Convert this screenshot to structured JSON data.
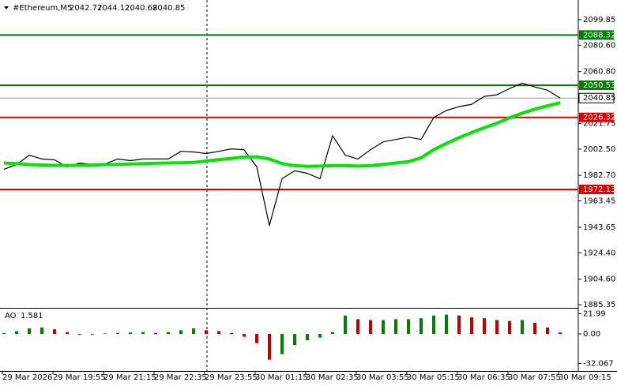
{
  "chart_data": [
    {
      "type": "line",
      "title": "#Ethereum,M5",
      "ohlc": [
        2042.77,
        2044.12,
        2040.68,
        2040.85
      ],
      "series": [
        {
          "name": "Price",
          "color": "#000000",
          "values": [
            1987.3,
            1990.8,
            1997.9,
            1995,
            1994.4,
            1989.1,
            1992,
            1990.8,
            1991.4,
            1995,
            1993.8,
            1995,
            1995,
            1995,
            2000.8,
            2000.3,
            1999.1,
            2000.8,
            2002.6,
            2002,
            1989.1,
            1945,
            1980.2,
            1986.1,
            1984.3,
            1980.2,
            2012.6,
            1997.9,
            1995,
            2002,
            2007.9,
            2009.7,
            2011.5,
            2009.7,
            2026.2,
            2031.5,
            2034.4,
            2036.2,
            2042.1,
            2043.3,
            2048,
            2052.1,
            2049.2,
            2046.8,
            2040.85
          ]
        },
        {
          "name": "MA",
          "color": "#00e600",
          "values": [
            1992,
            1991.5,
            1990.8,
            1990.5,
            1990.2,
            1990.2,
            1990.2,
            1990.5,
            1990.8,
            1991,
            1991.2,
            1991.5,
            1991.8,
            1992,
            1992.2,
            1992.5,
            1993.5,
            1994.5,
            1995.5,
            1996.5,
            1996.7,
            1995,
            1991.5,
            1990,
            1989.5,
            1989.7,
            1990,
            1990,
            1989.7,
            1990,
            1991,
            1992,
            1993,
            1996,
            2002,
            2006.7,
            2011,
            2015,
            2018.5,
            2022,
            2026,
            2029.5,
            2032.5,
            2035,
            2037.4
          ]
        }
      ],
      "levels": [
        {
          "value": 2088.32,
          "color": "#008000"
        },
        {
          "value": 2050.53,
          "color": "#008000"
        },
        {
          "value": 2026.32,
          "color": "#e00000"
        },
        {
          "value": 1972.13,
          "color": "#e00000"
        }
      ],
      "current_price": 2040.85,
      "ylim": [
        1883.0,
        2109.9
      ],
      "yticks": [
        2099.85,
        {
          "value": 2080.6,
          "label": "2080.60"
        },
        {
          "value": 2060.8,
          "label": "2060.80"
        },
        2021.75,
        {
          "value": 2002.5,
          "label": "2002.50"
        },
        {
          "value": 1982.7,
          "label": "1982.70"
        },
        1963.45,
        1943.65,
        {
          "value": 1924.4,
          "label": "1924.40"
        },
        {
          "value": 1904.6,
          "label": "1904.60"
        },
        1885.35
      ],
      "x_labels": [
        "29 Mar 2026",
        "29 Mar 19:55",
        "29 Mar 21:15",
        "29 Mar 22:35",
        "29 Mar 23:55",
        "30 Mar 01:15",
        "30 Mar 02:35",
        "30 Mar 03:55",
        "30 Mar 05:15",
        "30 Mar 06:35",
        "30 Mar 07:55",
        "30 Mar 09:15"
      ]
    },
    {
      "type": "bar",
      "title": "AO",
      "current": 1.581,
      "colors": [
        "#008000",
        "#c00000"
      ],
      "values": [
        1,
        3,
        6,
        7,
        5,
        2,
        -1,
        -1,
        0.5,
        1,
        1.5,
        2,
        1,
        2,
        4,
        6,
        4,
        3,
        1,
        -3,
        -10,
        -28,
        -22,
        -12,
        -7,
        -4,
        2,
        20,
        16,
        15,
        15,
        16,
        16,
        17,
        20,
        21,
        20,
        18,
        17,
        15,
        14,
        15,
        12,
        7,
        1.581
      ],
      "ylim": [
        -40.3,
        26.6
      ],
      "yticks": [
        21.99,
        {
          "value": 0,
          "label": "0.00"
        },
        -32.067
      ]
    }
  ]
}
